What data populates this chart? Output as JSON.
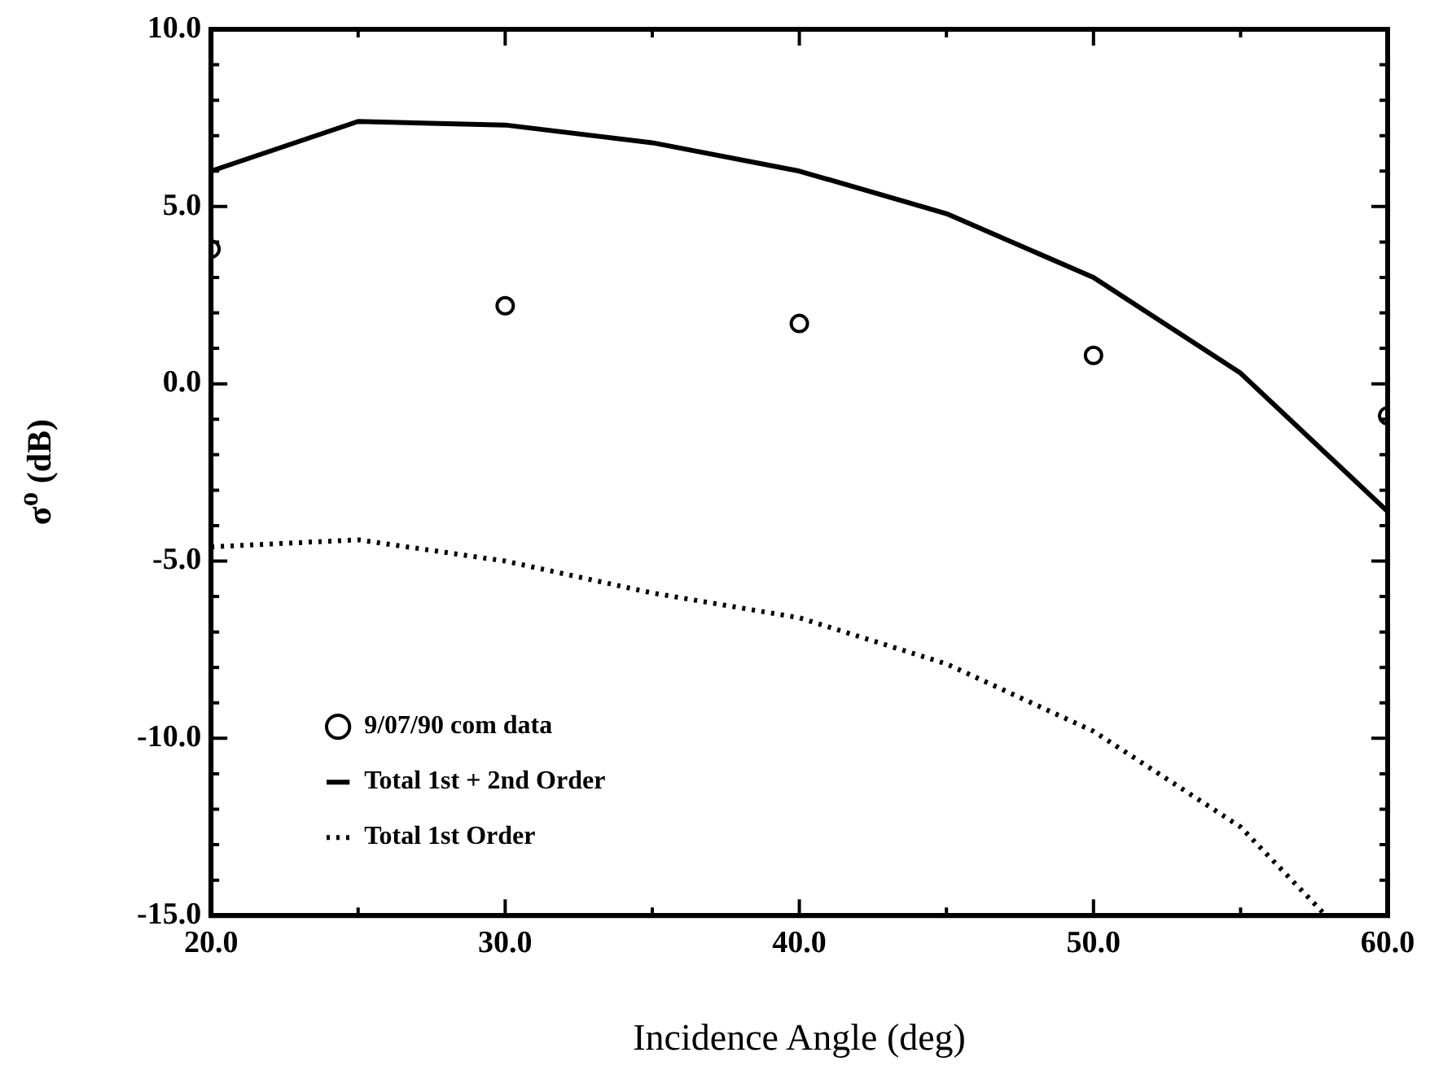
{
  "chart_data": {
    "type": "line",
    "xlabel": "Incidence Angle (deg)",
    "ylabel": "σ$^{o}$ (dB)",
    "xlim": [
      20,
      60
    ],
    "ylim": [
      -15,
      10
    ],
    "xticks": [
      {
        "value": 20,
        "label": "20.0"
      },
      {
        "value": 25,
        "label": null
      },
      {
        "value": 30,
        "label": "30.0"
      },
      {
        "value": 35,
        "label": null
      },
      {
        "value": 40,
        "label": "40.0"
      },
      {
        "value": 45,
        "label": null
      },
      {
        "value": 50,
        "label": "50.0"
      },
      {
        "value": 55,
        "label": null
      },
      {
        "value": 60,
        "label": "60.0"
      }
    ],
    "yticks": [
      {
        "value": -15,
        "label": "-15.0"
      },
      {
        "value": -14,
        "label": null
      },
      {
        "value": -13,
        "label": null
      },
      {
        "value": -12,
        "label": null
      },
      {
        "value": -11,
        "label": null
      },
      {
        "value": -10,
        "label": "-10.0"
      },
      {
        "value": -9,
        "label": null
      },
      {
        "value": -8,
        "label": null
      },
      {
        "value": -7,
        "label": null
      },
      {
        "value": -6,
        "label": null
      },
      {
        "value": -5,
        "label": "-5.0"
      },
      {
        "value": -4,
        "label": null
      },
      {
        "value": -3,
        "label": null
      },
      {
        "value": -2,
        "label": null
      },
      {
        "value": -1,
        "label": null
      },
      {
        "value": 0,
        "label": "0.0"
      },
      {
        "value": 1,
        "label": null
      },
      {
        "value": 2,
        "label": null
      },
      {
        "value": 3,
        "label": null
      },
      {
        "value": 4,
        "label": null
      },
      {
        "value": 5,
        "label": "5.0"
      },
      {
        "value": 6,
        "label": null
      },
      {
        "value": 7,
        "label": null
      },
      {
        "value": 8,
        "label": null
      },
      {
        "value": 9,
        "label": null
      },
      {
        "value": 10,
        "label": "10.0"
      }
    ],
    "grid": false,
    "legend": "bottom left",
    "series": [
      {
        "name": "9/07/90 com data",
        "type": "scatter",
        "marker": "circle",
        "color": "#000000",
        "x": [
          20,
          30,
          40,
          50,
          60
        ],
        "values": [
          3.8,
          2.2,
          1.7,
          0.8,
          -0.9
        ]
      },
      {
        "name": "Total 1st + 2nd Order",
        "type": "line",
        "line_style": "solid",
        "marker": "none",
        "color": "#000000",
        "x": [
          20,
          25,
          30,
          35,
          40,
          45,
          50,
          55,
          60
        ],
        "values": [
          6.0,
          7.4,
          7.3,
          6.8,
          6.0,
          4.8,
          3.0,
          0.3,
          -3.6
        ]
      },
      {
        "name": "Total 1st Order",
        "type": "line",
        "line_style": "dotted",
        "marker": "none",
        "color": "#000000",
        "x": [
          20,
          25,
          30,
          35,
          40,
          45,
          50,
          55,
          57.9
        ],
        "values": [
          -4.6,
          -4.4,
          -5.0,
          -5.9,
          -6.6,
          -7.9,
          -9.8,
          -12.5,
          -15.0
        ]
      }
    ]
  }
}
